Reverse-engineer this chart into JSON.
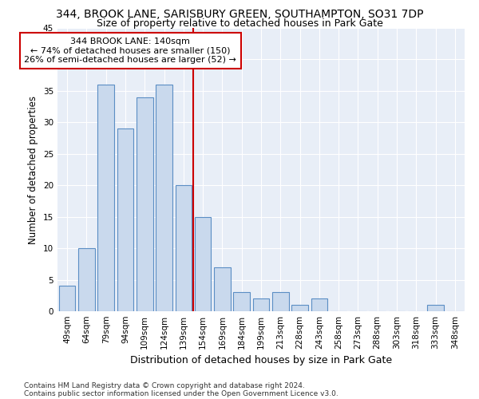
{
  "title1": "344, BROOK LANE, SARISBURY GREEN, SOUTHAMPTON, SO31 7DP",
  "title2": "Size of property relative to detached houses in Park Gate",
  "xlabel": "Distribution of detached houses by size in Park Gate",
  "ylabel": "Number of detached properties",
  "categories": [
    "49sqm",
    "64sqm",
    "79sqm",
    "94sqm",
    "109sqm",
    "124sqm",
    "139sqm",
    "154sqm",
    "169sqm",
    "184sqm",
    "199sqm",
    "213sqm",
    "228sqm",
    "243sqm",
    "258sqm",
    "273sqm",
    "288sqm",
    "303sqm",
    "318sqm",
    "333sqm",
    "348sqm"
  ],
  "values": [
    4,
    10,
    36,
    29,
    34,
    36,
    20,
    15,
    7,
    3,
    2,
    3,
    1,
    2,
    0,
    0,
    0,
    0,
    0,
    1,
    0
  ],
  "bar_color": "#c9d9ed",
  "bar_edge_color": "#5b8ec4",
  "reference_line_x": 6.5,
  "reference_line_color": "#cc0000",
  "annotation_text": "344 BROOK LANE: 140sqm\n← 74% of detached houses are smaller (150)\n26% of semi-detached houses are larger (52) →",
  "annotation_box_color": "#ffffff",
  "annotation_box_edge": "#cc0000",
  "ylim": [
    0,
    45
  ],
  "yticks": [
    0,
    5,
    10,
    15,
    20,
    25,
    30,
    35,
    40,
    45
  ],
  "footnote1": "Contains HM Land Registry data © Crown copyright and database right 2024.",
  "footnote2": "Contains public sector information licensed under the Open Government Licence v3.0.",
  "bg_color": "#e8eef7",
  "title1_fontsize": 10,
  "title2_fontsize": 9,
  "xlabel_fontsize": 9,
  "ylabel_fontsize": 8.5,
  "tick_fontsize": 7.5,
  "annotation_fontsize": 8,
  "footnote_fontsize": 6.5
}
